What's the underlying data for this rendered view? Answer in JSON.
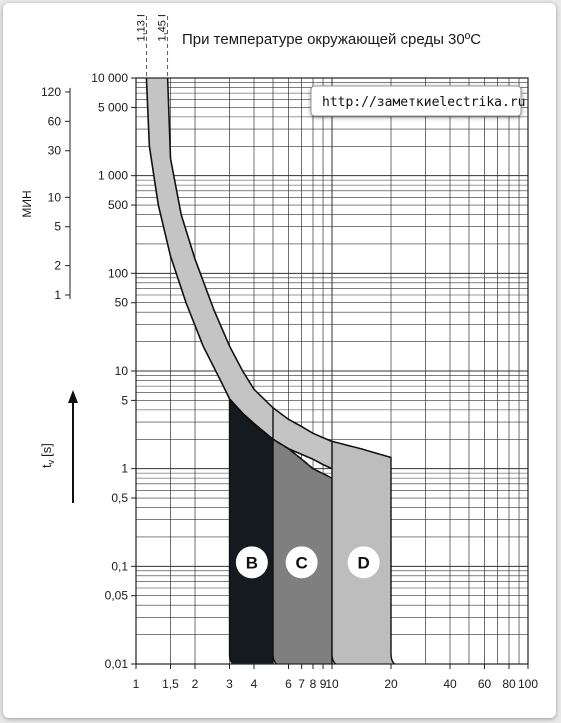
{
  "title": "При температуре окружающей среды 30ºС",
  "watermark": "http://заметкиelectrika.ru",
  "marker_labels": [
    "1,13 I",
    "1,45 I"
  ],
  "chart_data": {
    "type": "area",
    "title": "При температуре окружающей среды 30ºС",
    "xlabel": "",
    "ylabel": "t",
    "ylabel_subscript": "v",
    "ylabel_unit": "[s]",
    "minutes_axis_label": "МИН",
    "x_scale": "log",
    "y_scale": "log",
    "xlim": [
      1,
      100
    ],
    "ylim": [
      0.01,
      10000
    ],
    "x_ticks": [
      1,
      1.5,
      2,
      3,
      4,
      6,
      7,
      8,
      9,
      10,
      20,
      40,
      60,
      80,
      100
    ],
    "x_tick_labels": [
      "1",
      "1,5",
      "2",
      "3",
      "4",
      "6",
      "7",
      "8",
      "9",
      "10",
      "20",
      "40",
      "60",
      "80",
      "100"
    ],
    "y_ticks": [
      0.01,
      0.05,
      0.1,
      0.5,
      1,
      5,
      10,
      50,
      100,
      500,
      1000,
      5000,
      10000
    ],
    "y_tick_labels": [
      "0,01",
      "0,05",
      "0,1",
      "0,5",
      "1",
      "5",
      "10",
      "50",
      "100",
      "500",
      "1 000",
      "5 000",
      "10 000"
    ],
    "minute_ticks": [
      1,
      2,
      5,
      10,
      30,
      60,
      120
    ],
    "minute_tick_labels": [
      "1",
      "2",
      "5",
      "10",
      "30",
      "60",
      "120"
    ],
    "grid": true,
    "thermal_band": {
      "upper": [
        [
          1.45,
          10000
        ],
        [
          1.5,
          1500
        ],
        [
          1.7,
          400
        ],
        [
          2.0,
          140
        ],
        [
          2.5,
          42
        ],
        [
          3.0,
          18
        ],
        [
          3.5,
          10
        ],
        [
          4.0,
          6.5
        ],
        [
          5.0,
          4.2
        ],
        [
          6.0,
          3.2
        ],
        [
          7.0,
          2.7
        ],
        [
          8.0,
          2.3
        ],
        [
          10.0,
          1.9
        ],
        [
          14.0,
          1.6
        ],
        [
          20.0,
          1.3
        ]
      ],
      "lower": [
        [
          1.13,
          10000
        ],
        [
          1.17,
          2000
        ],
        [
          1.3,
          500
        ],
        [
          1.5,
          150
        ],
        [
          1.8,
          50
        ],
        [
          2.2,
          18
        ],
        [
          2.7,
          8
        ],
        [
          3.0,
          5.2
        ],
        [
          3.5,
          3.7
        ],
        [
          4.0,
          2.9
        ],
        [
          5.0,
          2.0
        ],
        [
          6.0,
          1.6
        ],
        [
          7.0,
          1.4
        ],
        [
          8.0,
          1.25
        ],
        [
          9.0,
          1.1
        ],
        [
          10.0,
          1.0
        ]
      ],
      "dashed_segment": [
        [
          3.0,
          5.0
        ],
        [
          4.0,
          2.8
        ],
        [
          5.0,
          2.0
        ],
        [
          6.0,
          1.6
        ],
        [
          7.0,
          1.25
        ],
        [
          8.0,
          1.0
        ],
        [
          10.0,
          0.8
        ]
      ]
    },
    "series": [
      {
        "name": "B",
        "x_start": 3,
        "x_end": 5,
        "color": "#151a1f"
      },
      {
        "name": "C",
        "x_start": 5,
        "x_end": 10,
        "color": "#7f7f7f"
      },
      {
        "name": "D",
        "x_start": 10,
        "x_end": 20,
        "color": "#bdbdbd"
      }
    ],
    "band_color": "#c4c4c4",
    "marker_lines_x": [
      1.13,
      1.45
    ]
  }
}
